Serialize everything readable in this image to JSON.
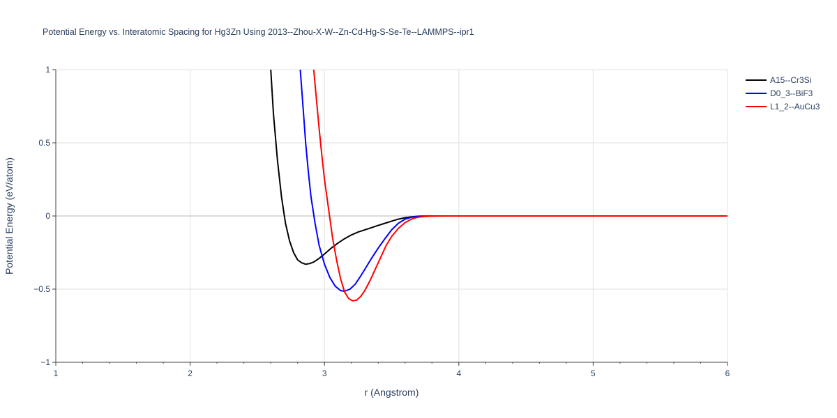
{
  "chart_data": {
    "type": "line",
    "title": "Potential Energy vs. Interatomic Spacing for Hg3Zn Using 2013--Zhou-X-W--Zn-Cd-Hg-S-Se-Te--LAMMPS--ipr1",
    "xlabel": "r (Angstrom)",
    "ylabel": "Potential Energy (eV/atom)",
    "xlim": [
      1,
      6
    ],
    "ylim": [
      -1,
      1
    ],
    "x_ticks": [
      1,
      2,
      3,
      4,
      5,
      6
    ],
    "x_tick_labels": [
      "1",
      "2",
      "3",
      "4",
      "5",
      "6"
    ],
    "y_ticks": [
      -1,
      -0.5,
      0,
      0.5,
      1
    ],
    "y_tick_labels": [
      "−1",
      "−0.5",
      "0",
      "0.5",
      "1"
    ],
    "grid": true,
    "legend_position": "top-right-outside",
    "series": [
      {
        "name": "A15--Cr3Si",
        "color": "#000000",
        "x": [
          2.58,
          2.6,
          2.62,
          2.65,
          2.68,
          2.71,
          2.74,
          2.77,
          2.8,
          2.83,
          2.86,
          2.89,
          2.92,
          2.96,
          3.0,
          3.05,
          3.1,
          3.15,
          3.2,
          3.25,
          3.3,
          3.35,
          3.4,
          3.45,
          3.5,
          3.55,
          3.6,
          3.65,
          3.7,
          3.75,
          3.8,
          3.9,
          4.0,
          4.5,
          5.0,
          5.5,
          6.0
        ],
        "y": [
          1.3,
          1.0,
          0.7,
          0.38,
          0.13,
          -0.05,
          -0.17,
          -0.25,
          -0.3,
          -0.32,
          -0.33,
          -0.325,
          -0.315,
          -0.29,
          -0.26,
          -0.22,
          -0.185,
          -0.155,
          -0.13,
          -0.11,
          -0.095,
          -0.08,
          -0.065,
          -0.05,
          -0.035,
          -0.022,
          -0.012,
          -0.006,
          -0.002,
          -0.001,
          0,
          0,
          0,
          0,
          0,
          0,
          0
        ]
      },
      {
        "name": "D0_3--BiF3",
        "color": "#0000ff",
        "x": [
          2.8,
          2.82,
          2.84,
          2.86,
          2.88,
          2.9,
          2.93,
          2.96,
          3.0,
          3.04,
          3.08,
          3.12,
          3.15,
          3.19,
          3.23,
          3.27,
          3.31,
          3.35,
          3.4,
          3.45,
          3.5,
          3.55,
          3.6,
          3.65,
          3.7,
          3.75,
          3.8,
          3.9,
          4.0,
          4.5,
          5.0,
          5.5,
          6.0
        ],
        "y": [
          1.35,
          1.0,
          0.75,
          0.5,
          0.3,
          0.13,
          -0.05,
          -0.2,
          -0.33,
          -0.42,
          -0.48,
          -0.51,
          -0.515,
          -0.5,
          -0.465,
          -0.41,
          -0.35,
          -0.29,
          -0.22,
          -0.155,
          -0.095,
          -0.05,
          -0.022,
          -0.008,
          -0.002,
          -0.001,
          0,
          0,
          0,
          0,
          0,
          0,
          0
        ]
      },
      {
        "name": "L1_2--AuCu3",
        "color": "#ff0000",
        "x": [
          2.9,
          2.92,
          2.94,
          2.96,
          2.98,
          3.0,
          3.03,
          3.06,
          3.09,
          3.12,
          3.15,
          3.18,
          3.21,
          3.24,
          3.27,
          3.3,
          3.34,
          3.38,
          3.42,
          3.46,
          3.5,
          3.55,
          3.6,
          3.65,
          3.7,
          3.75,
          3.8,
          3.9,
          4.0,
          4.5,
          5.0,
          5.5,
          6.0
        ],
        "y": [
          1.2,
          1.0,
          0.8,
          0.6,
          0.42,
          0.25,
          0.05,
          -0.15,
          -0.3,
          -0.43,
          -0.52,
          -0.565,
          -0.58,
          -0.575,
          -0.55,
          -0.51,
          -0.44,
          -0.36,
          -0.28,
          -0.2,
          -0.14,
          -0.085,
          -0.045,
          -0.02,
          -0.008,
          -0.003,
          -0.001,
          0,
          0,
          0,
          0,
          0,
          0
        ]
      }
    ]
  }
}
